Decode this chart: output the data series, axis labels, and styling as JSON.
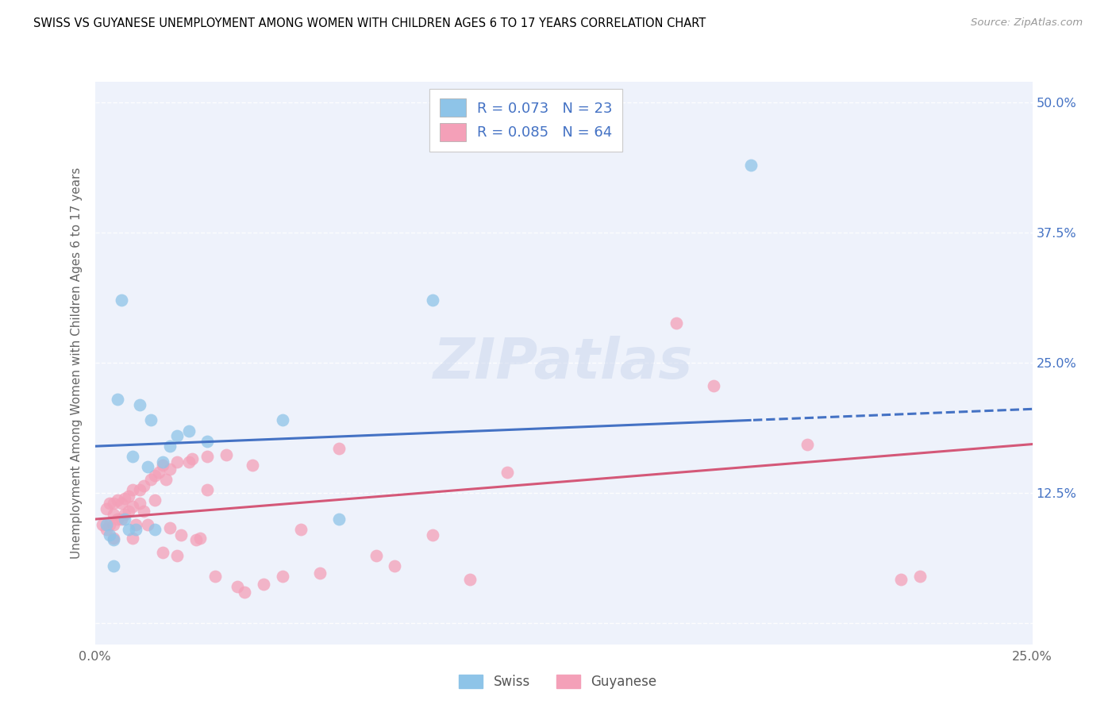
{
  "title": "SWISS VS GUYANESE UNEMPLOYMENT AMONG WOMEN WITH CHILDREN AGES 6 TO 17 YEARS CORRELATION CHART",
  "source": "Source: ZipAtlas.com",
  "ylabel": "Unemployment Among Women with Children Ages 6 to 17 years",
  "xlim": [
    0.0,
    0.25
  ],
  "ylim": [
    -0.02,
    0.52
  ],
  "ytick_vals": [
    0.0,
    0.125,
    0.25,
    0.375,
    0.5
  ],
  "xtick_vals": [
    0.0,
    0.05,
    0.1,
    0.15,
    0.2,
    0.25
  ],
  "ytick_labels_right": [
    "",
    "12.5%",
    "25.0%",
    "37.5%",
    "50.0%"
  ],
  "xtick_labels": [
    "0.0%",
    "",
    "",
    "",
    "",
    "25.0%"
  ],
  "swiss_R": 0.073,
  "swiss_N": 23,
  "guyanese_R": 0.085,
  "guyanese_N": 64,
  "swiss_color": "#8ec4e8",
  "guyanese_color": "#f4a0b8",
  "swiss_line_color": "#4472c4",
  "guyanese_line_color": "#d45878",
  "bg_color": "#ffffff",
  "plot_bg": "#eef2fb",
  "watermark": "ZIPatlas",
  "grid_color": "#ffffff",
  "swiss_x": [
    0.003,
    0.004,
    0.005,
    0.005,
    0.006,
    0.007,
    0.008,
    0.009,
    0.01,
    0.011,
    0.012,
    0.014,
    0.015,
    0.016,
    0.018,
    0.02,
    0.022,
    0.025,
    0.03,
    0.05,
    0.065,
    0.09,
    0.175
  ],
  "swiss_y": [
    0.095,
    0.085,
    0.08,
    0.055,
    0.215,
    0.31,
    0.1,
    0.09,
    0.16,
    0.09,
    0.21,
    0.15,
    0.195,
    0.09,
    0.155,
    0.17,
    0.18,
    0.185,
    0.175,
    0.195,
    0.1,
    0.31,
    0.44
  ],
  "guyanese_x": [
    0.002,
    0.003,
    0.003,
    0.004,
    0.004,
    0.005,
    0.005,
    0.005,
    0.005,
    0.006,
    0.006,
    0.007,
    0.007,
    0.008,
    0.008,
    0.009,
    0.009,
    0.01,
    0.01,
    0.01,
    0.011,
    0.012,
    0.012,
    0.013,
    0.013,
    0.014,
    0.015,
    0.016,
    0.016,
    0.017,
    0.018,
    0.018,
    0.019,
    0.02,
    0.02,
    0.022,
    0.022,
    0.023,
    0.025,
    0.026,
    0.027,
    0.028,
    0.03,
    0.03,
    0.032,
    0.035,
    0.038,
    0.04,
    0.042,
    0.045,
    0.05,
    0.055,
    0.06,
    0.065,
    0.075,
    0.08,
    0.09,
    0.1,
    0.11,
    0.155,
    0.165,
    0.19,
    0.215,
    0.22
  ],
  "guyanese_y": [
    0.095,
    0.11,
    0.09,
    0.115,
    0.095,
    0.115,
    0.105,
    0.095,
    0.082,
    0.118,
    0.1,
    0.115,
    0.1,
    0.12,
    0.105,
    0.122,
    0.108,
    0.128,
    0.112,
    0.082,
    0.095,
    0.128,
    0.115,
    0.132,
    0.108,
    0.095,
    0.138,
    0.142,
    0.118,
    0.145,
    0.152,
    0.068,
    0.138,
    0.148,
    0.092,
    0.155,
    0.065,
    0.085,
    0.155,
    0.158,
    0.08,
    0.082,
    0.16,
    0.128,
    0.045,
    0.162,
    0.035,
    0.03,
    0.152,
    0.038,
    0.045,
    0.09,
    0.048,
    0.168,
    0.065,
    0.055,
    0.085,
    0.042,
    0.145,
    0.288,
    0.228,
    0.172,
    0.042,
    0.045
  ]
}
